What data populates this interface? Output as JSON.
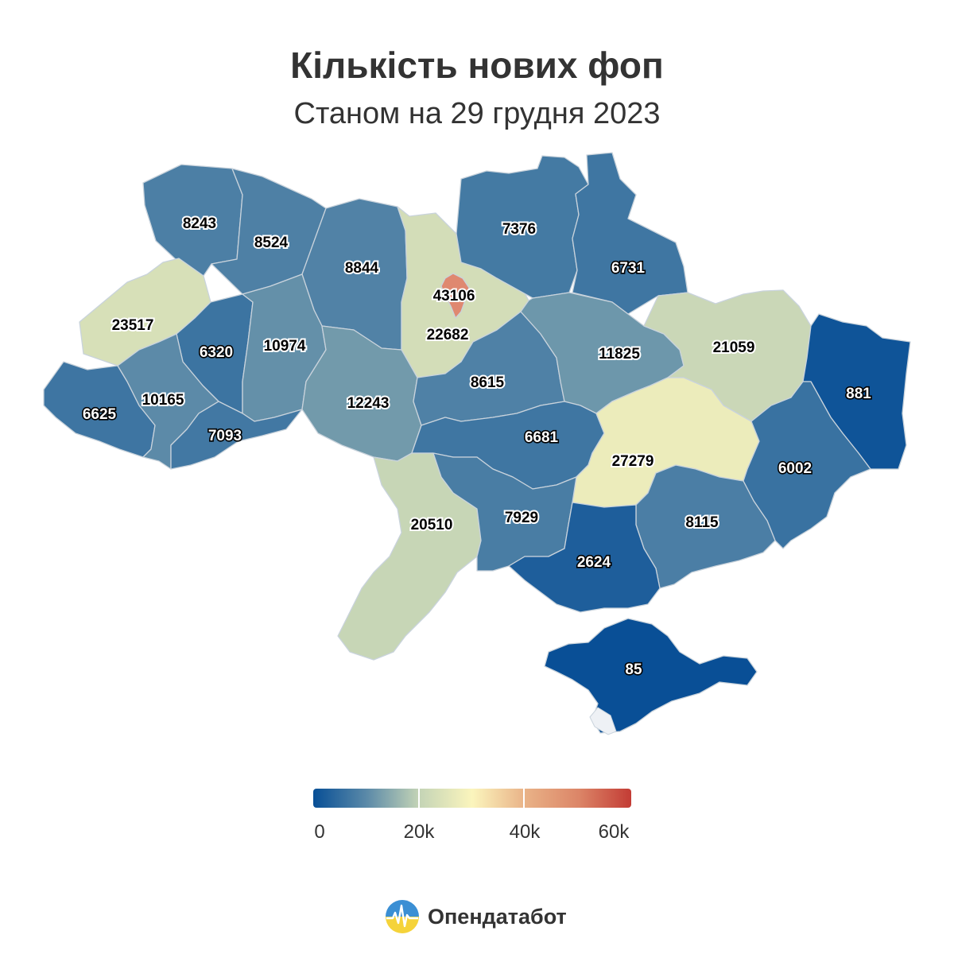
{
  "title": "Кількість нових фоп",
  "subtitle": "Станом на 29 грудня 2023",
  "legend": {
    "min": 0,
    "max": 60000,
    "ticks": [
      "0",
      "20k",
      "40k",
      "60k"
    ],
    "colors": [
      "#084f96",
      "#5a89a8",
      "#c4d4b6",
      "#fbf5bd",
      "#e9b287",
      "#dc8668",
      "#c33c35"
    ]
  },
  "colors": {
    "cities": "#df8870",
    "border": "#c9d3dc",
    "sea_white": "#ffffff"
  },
  "regions": [
    {
      "id": "volyn",
      "value": 8243
    },
    {
      "id": "rivne",
      "value": 8524
    },
    {
      "id": "zhytomyr",
      "value": 8844
    },
    {
      "id": "kyiv-oblast",
      "value": 22682
    },
    {
      "id": "kyiv-city",
      "value": 43106
    },
    {
      "id": "chernihiv",
      "value": 7376
    },
    {
      "id": "sumy",
      "value": 6731
    },
    {
      "id": "lviv",
      "value": 23517
    },
    {
      "id": "ternopil",
      "value": 6320
    },
    {
      "id": "khmelnytskyi",
      "value": 10974
    },
    {
      "id": "vinnytsia",
      "value": 12243
    },
    {
      "id": "cherkasy",
      "value": 8615
    },
    {
      "id": "poltava",
      "value": 11825
    },
    {
      "id": "kharkiv",
      "value": 21059
    },
    {
      "id": "luhansk",
      "value": 881
    },
    {
      "id": "zakarpattia",
      "value": 6625
    },
    {
      "id": "ivano-frankivsk",
      "value": 10165
    },
    {
      "id": "chernivtsi",
      "value": 7093
    },
    {
      "id": "kirovohrad",
      "value": 6681
    },
    {
      "id": "dnipropetrovsk",
      "value": 27279
    },
    {
      "id": "donetsk",
      "value": 6002
    },
    {
      "id": "odesa",
      "value": 20510
    },
    {
      "id": "mykolaiv",
      "value": 7929
    },
    {
      "id": "zaporizhzhia",
      "value": 8115
    },
    {
      "id": "kherson",
      "value": 2624
    },
    {
      "id": "crimea",
      "value": 85
    }
  ],
  "brand": {
    "name": "Опендатабот"
  }
}
